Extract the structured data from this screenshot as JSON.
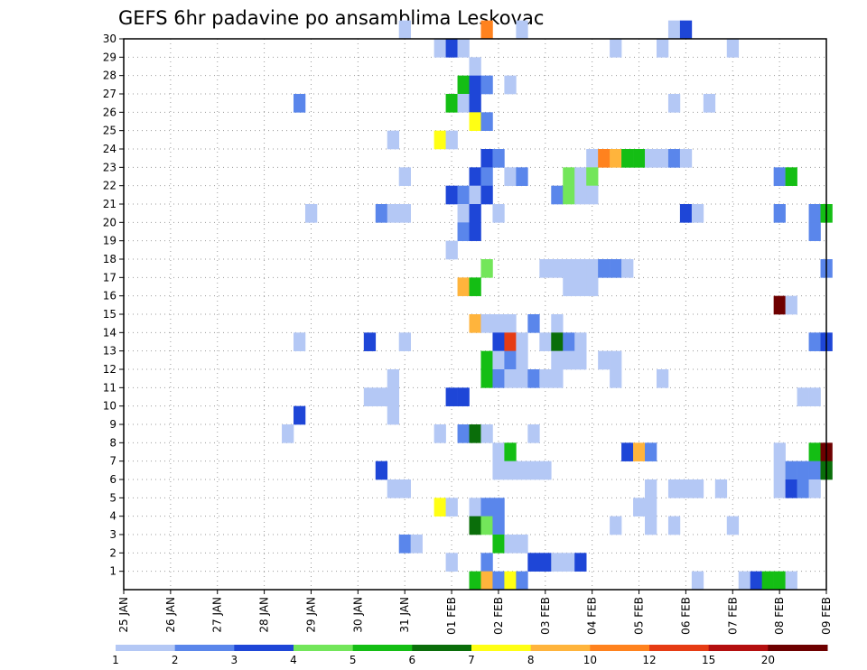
{
  "chart_data": {
    "type": "heatmap",
    "title": "GEFS 6hr padavine po ansamblima Leskovac",
    "xlabel": "",
    "ylabel": "",
    "x_tick_labels": [
      "25 JAN",
      "26 JAN",
      "27 JAN",
      "28 JAN",
      "29 JAN",
      "30 JAN",
      "31 JAN",
      "01 FEB",
      "02 FEB",
      "03 FEB",
      "04 FEB",
      "05 FEB",
      "06 FEB",
      "07 FEB",
      "08 FEB",
      "09 FEB"
    ],
    "y_tick_labels": [
      "1",
      "2",
      "3",
      "4",
      "5",
      "6",
      "7",
      "8",
      "9",
      "10",
      "11",
      "12",
      "13",
      "14",
      "15",
      "16",
      "17",
      "18",
      "19",
      "20",
      "21",
      "22",
      "23",
      "24",
      "25",
      "26",
      "27",
      "28",
      "29",
      "30"
    ],
    "x_range_steps": [
      0,
      60
    ],
    "y_range": [
      0,
      30
    ],
    "grid": true,
    "colorbar": {
      "levels": [
        "1",
        "2",
        "3",
        "4",
        "5",
        "6",
        "7",
        "8",
        "10",
        "12",
        "15",
        "20"
      ],
      "colors": [
        "#b4c8f5",
        "#5a86eb",
        "#1e46d7",
        "#73e65a",
        "#14be14",
        "#0a6e0a",
        "#ffff14",
        "#ffb43c",
        "#ff821e",
        "#e63c14",
        "#b40f0f",
        "#6e0000"
      ]
    },
    "cells": [
      [
        24,
        30,
        0
      ],
      [
        31,
        30,
        8
      ],
      [
        34,
        30,
        0
      ],
      [
        47,
        30,
        0
      ],
      [
        48,
        30,
        2
      ],
      [
        27,
        29,
        0
      ],
      [
        28,
        29,
        2
      ],
      [
        29,
        29,
        0
      ],
      [
        42,
        29,
        0
      ],
      [
        46,
        29,
        0
      ],
      [
        52,
        29,
        0
      ],
      [
        30,
        28,
        0
      ],
      [
        29,
        27,
        4
      ],
      [
        30,
        27,
        2
      ],
      [
        31,
        27,
        1
      ],
      [
        33,
        27,
        0
      ],
      [
        15,
        26,
        1
      ],
      [
        28,
        26,
        4
      ],
      [
        29,
        26,
        0
      ],
      [
        30,
        26,
        2
      ],
      [
        47,
        26,
        0
      ],
      [
        50,
        26,
        0
      ],
      [
        30,
        25,
        6
      ],
      [
        31,
        25,
        1
      ],
      [
        23,
        24,
        0
      ],
      [
        27,
        24,
        6
      ],
      [
        28,
        24,
        0
      ],
      [
        31,
        23,
        2
      ],
      [
        32,
        23,
        1
      ],
      [
        40,
        23,
        0
      ],
      [
        41,
        23,
        8
      ],
      [
        42,
        23,
        7
      ],
      [
        43,
        23,
        4
      ],
      [
        44,
        23,
        4
      ],
      [
        45,
        23,
        0
      ],
      [
        46,
        23,
        0
      ],
      [
        47,
        23,
        1
      ],
      [
        48,
        23,
        0
      ],
      [
        24,
        22,
        0
      ],
      [
        30,
        22,
        2
      ],
      [
        31,
        22,
        1
      ],
      [
        33,
        22,
        0
      ],
      [
        34,
        22,
        1
      ],
      [
        38,
        22,
        3
      ],
      [
        39,
        22,
        0
      ],
      [
        40,
        22,
        3
      ],
      [
        56,
        22,
        1
      ],
      [
        57,
        22,
        4
      ],
      [
        28,
        21,
        2
      ],
      [
        29,
        21,
        1
      ],
      [
        30,
        21,
        0
      ],
      [
        31,
        21,
        2
      ],
      [
        37,
        21,
        1
      ],
      [
        38,
        21,
        3
      ],
      [
        39,
        21,
        0
      ],
      [
        40,
        21,
        0
      ],
      [
        16,
        20,
        0
      ],
      [
        22,
        20,
        1
      ],
      [
        23,
        20,
        0
      ],
      [
        24,
        20,
        0
      ],
      [
        29,
        20,
        0
      ],
      [
        30,
        20,
        2
      ],
      [
        32,
        20,
        0
      ],
      [
        48,
        20,
        2
      ],
      [
        49,
        20,
        0
      ],
      [
        56,
        20,
        1
      ],
      [
        59,
        20,
        1
      ],
      [
        60,
        20,
        4
      ],
      [
        29,
        19,
        1
      ],
      [
        30,
        19,
        2
      ],
      [
        59,
        19,
        1
      ],
      [
        28,
        18,
        0
      ],
      [
        31,
        17,
        3
      ],
      [
        36,
        17,
        0
      ],
      [
        37,
        17,
        0
      ],
      [
        38,
        17,
        0
      ],
      [
        39,
        17,
        0
      ],
      [
        40,
        17,
        0
      ],
      [
        41,
        17,
        1
      ],
      [
        42,
        17,
        1
      ],
      [
        43,
        17,
        0
      ],
      [
        60,
        17,
        1
      ],
      [
        29,
        16,
        7
      ],
      [
        30,
        16,
        4
      ],
      [
        38,
        16,
        0
      ],
      [
        39,
        16,
        0
      ],
      [
        40,
        16,
        0
      ],
      [
        56,
        15,
        11
      ],
      [
        57,
        15,
        0
      ],
      [
        30,
        14,
        7
      ],
      [
        31,
        14,
        0
      ],
      [
        32,
        14,
        0
      ],
      [
        33,
        14,
        0
      ],
      [
        35,
        14,
        1
      ],
      [
        37,
        14,
        0
      ],
      [
        15,
        13,
        0
      ],
      [
        21,
        13,
        2
      ],
      [
        24,
        13,
        0
      ],
      [
        32,
        13,
        2
      ],
      [
        33,
        13,
        9
      ],
      [
        34,
        13,
        0
      ],
      [
        36,
        13,
        0
      ],
      [
        37,
        13,
        5
      ],
      [
        38,
        13,
        1
      ],
      [
        39,
        13,
        0
      ],
      [
        59,
        13,
        1
      ],
      [
        60,
        13,
        2
      ],
      [
        31,
        12,
        4
      ],
      [
        32,
        12,
        0
      ],
      [
        33,
        12,
        1
      ],
      [
        34,
        12,
        0
      ],
      [
        37,
        12,
        0
      ],
      [
        38,
        12,
        0
      ],
      [
        39,
        12,
        0
      ],
      [
        41,
        12,
        0
      ],
      [
        42,
        12,
        0
      ],
      [
        23,
        11,
        0
      ],
      [
        31,
        11,
        4
      ],
      [
        32,
        11,
        1
      ],
      [
        33,
        11,
        0
      ],
      [
        34,
        11,
        0
      ],
      [
        35,
        11,
        1
      ],
      [
        36,
        11,
        0
      ],
      [
        37,
        11,
        0
      ],
      [
        42,
        11,
        0
      ],
      [
        46,
        11,
        0
      ],
      [
        21,
        10,
        0
      ],
      [
        22,
        10,
        0
      ],
      [
        23,
        10,
        0
      ],
      [
        28,
        10,
        2
      ],
      [
        29,
        10,
        2
      ],
      [
        58,
        10,
        0
      ],
      [
        59,
        10,
        0
      ],
      [
        15,
        9,
        2
      ],
      [
        23,
        9,
        0
      ],
      [
        14,
        8,
        0
      ],
      [
        27,
        8,
        0
      ],
      [
        29,
        8,
        1
      ],
      [
        30,
        8,
        5
      ],
      [
        31,
        8,
        0
      ],
      [
        35,
        8,
        0
      ],
      [
        32,
        7,
        0
      ],
      [
        33,
        7,
        4
      ],
      [
        43,
        7,
        2
      ],
      [
        44,
        7,
        7
      ],
      [
        45,
        7,
        1
      ],
      [
        56,
        7,
        0
      ],
      [
        59,
        7,
        4
      ],
      [
        60,
        7,
        11
      ],
      [
        22,
        6,
        2
      ],
      [
        32,
        6,
        0
      ],
      [
        33,
        6,
        0
      ],
      [
        34,
        6,
        0
      ],
      [
        35,
        6,
        0
      ],
      [
        36,
        6,
        0
      ],
      [
        56,
        6,
        0
      ],
      [
        57,
        6,
        1
      ],
      [
        58,
        6,
        1
      ],
      [
        59,
        6,
        1
      ],
      [
        60,
        6,
        5
      ],
      [
        23,
        5,
        0
      ],
      [
        24,
        5,
        0
      ],
      [
        45,
        5,
        0
      ],
      [
        47,
        5,
        0
      ],
      [
        48,
        5,
        0
      ],
      [
        49,
        5,
        0
      ],
      [
        51,
        5,
        0
      ],
      [
        56,
        5,
        0
      ],
      [
        57,
        5,
        2
      ],
      [
        58,
        5,
        1
      ],
      [
        59,
        5,
        0
      ],
      [
        27,
        4,
        6
      ],
      [
        28,
        4,
        0
      ],
      [
        30,
        4,
        0
      ],
      [
        31,
        4,
        1
      ],
      [
        32,
        4,
        1
      ],
      [
        44,
        4,
        0
      ],
      [
        45,
        4,
        0
      ],
      [
        30,
        3,
        5
      ],
      [
        31,
        3,
        3
      ],
      [
        32,
        3,
        1
      ],
      [
        42,
        3,
        0
      ],
      [
        45,
        3,
        0
      ],
      [
        47,
        3,
        0
      ],
      [
        52,
        3,
        0
      ],
      [
        24,
        2,
        1
      ],
      [
        25,
        2,
        0
      ],
      [
        32,
        2,
        4
      ],
      [
        33,
        2,
        0
      ],
      [
        34,
        2,
        0
      ],
      [
        28,
        1,
        0
      ],
      [
        31,
        1,
        1
      ],
      [
        35,
        1,
        2
      ],
      [
        36,
        1,
        2
      ],
      [
        37,
        1,
        0
      ],
      [
        38,
        1,
        0
      ],
      [
        39,
        1,
        2
      ],
      [
        30,
        0,
        4
      ],
      [
        31,
        0,
        7
      ],
      [
        32,
        0,
        1
      ],
      [
        33,
        0,
        6
      ],
      [
        34,
        0,
        1
      ],
      [
        49,
        0,
        0
      ],
      [
        53,
        0,
        0
      ],
      [
        54,
        0,
        2
      ],
      [
        55,
        0,
        4
      ],
      [
        56,
        0,
        4
      ],
      [
        57,
        0,
        0
      ]
    ]
  }
}
